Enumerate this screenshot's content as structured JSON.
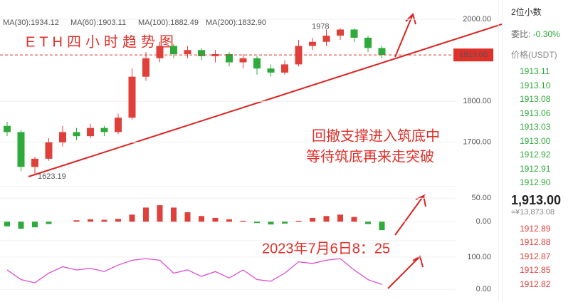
{
  "chart_data": [
    {
      "type": "candlestick",
      "title": "ETH四小时趋势图",
      "ma_legend": [
        {
          "label": "MA(30):1934.12",
          "color": "#3a8fd8"
        },
        {
          "label": "MA(60):1903.11",
          "color": "#7ab648"
        },
        {
          "label": "MA(100):1882.49",
          "color": "#e88a8a"
        },
        {
          "label": "MA(200):1832.90",
          "color": "#27b5b5"
        }
      ],
      "annotations": [
        "回撤支撑进入筑底中",
        "等待筑底再来走突破",
        "2023年7月6日8：25"
      ],
      "high_label": "1978",
      "low_label": "1623.19",
      "current_price": {
        "value": 1913,
        "label": "1913.00"
      },
      "open": [
        1740,
        1725,
        1640,
        1660,
        1700,
        1725,
        1715,
        1735,
        1725,
        1760,
        1860,
        1905,
        1935,
        1915,
        1925,
        1910,
        1915,
        1895,
        1905,
        1880,
        1870,
        1890,
        1935,
        1945,
        1960,
        1975,
        1955,
        1930
      ],
      "high": [
        1750,
        1730,
        1665,
        1710,
        1740,
        1735,
        1745,
        1740,
        1770,
        1880,
        1920,
        1945,
        1940,
        1935,
        1930,
        1925,
        1920,
        1915,
        1910,
        1890,
        1900,
        1950,
        1955,
        1975,
        1978,
        1978,
        1960,
        1935
      ],
      "low": [
        1715,
        1630,
        1623.19,
        1655,
        1690,
        1705,
        1710,
        1715,
        1720,
        1755,
        1850,
        1895,
        1905,
        1905,
        1900,
        1895,
        1885,
        1880,
        1865,
        1860,
        1865,
        1885,
        1925,
        1935,
        1950,
        1945,
        1920,
        1905
      ],
      "close": [
        1725,
        1640,
        1660,
        1700,
        1725,
        1715,
        1735,
        1725,
        1760,
        1860,
        1905,
        1935,
        1915,
        1925,
        1910,
        1915,
        1895,
        1905,
        1880,
        1870,
        1890,
        1935,
        1945,
        1960,
        1975,
        1955,
        1930,
        1913
      ],
      "up_color": "#e0403a",
      "down_color": "#2eaa3a",
      "ylim": [
        1592,
        2047
      ],
      "yticks": [
        {
          "value": 2000,
          "label": "2000.00"
        },
        {
          "value": 1800,
          "label": "1800.00"
        },
        {
          "value": 1700,
          "label": "1700.00"
        }
      ]
    },
    {
      "type": "bar",
      "values": [
        -10,
        -15,
        -12,
        -5,
        0,
        3,
        5,
        4,
        6,
        15,
        30,
        35,
        30,
        20,
        12,
        8,
        5,
        2,
        -3,
        -6,
        -4,
        2,
        8,
        12,
        15,
        10,
        -5,
        -18
      ],
      "up_color": "#e0403a",
      "down_color": "#2eaa3a",
      "ylim": [
        -36,
        70
      ],
      "yticks": [
        {
          "value": 50,
          "label": "50.00"
        },
        {
          "value": 0,
          "label": "0.00"
        }
      ]
    },
    {
      "type": "line",
      "values": [
        60,
        30,
        20,
        50,
        70,
        60,
        65,
        55,
        75,
        90,
        95,
        90,
        50,
        60,
        40,
        55,
        35,
        60,
        30,
        25,
        50,
        85,
        80,
        90,
        95,
        60,
        30,
        15
      ],
      "color": "#d94fd0",
      "ylim": [
        -35,
        135
      ],
      "yticks": [
        {
          "value": 100,
          "label": "100.00"
        },
        {
          "value": 0,
          "label": "0.00"
        }
      ]
    }
  ],
  "order_book": {
    "precision": "2位小数",
    "ratio_label": "委比:",
    "ratio": "-0.30%",
    "price_header": "价格(USDT)",
    "asks": [
      "1913.11",
      "1913.10",
      "1913.08",
      "1913.06",
      "1913.03",
      "1913.00",
      "1912.92",
      "1912.91",
      "1912.90"
    ],
    "last_price": "1,913.00",
    "cny": "≈¥13,873.08",
    "bids": [
      "1912.89",
      "1912.88",
      "1912.87",
      "1912.85",
      "1912.82"
    ]
  }
}
